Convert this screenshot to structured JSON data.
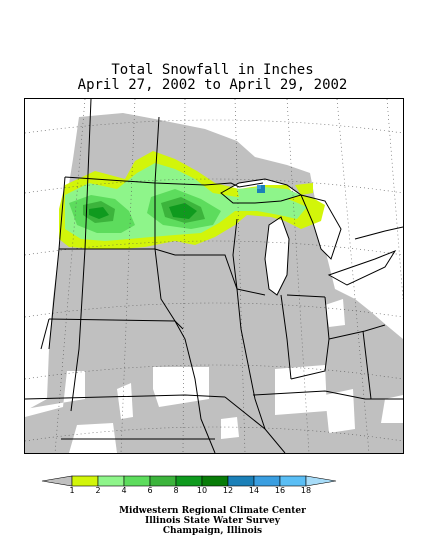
{
  "title": {
    "line1": "Total Snowfall in Inches",
    "line2": "April 27, 2002 to April 29, 2002"
  },
  "legend": {
    "labels": [
      "1",
      "2",
      "4",
      "6",
      "8",
      "10",
      "12",
      "14",
      "16",
      "18"
    ],
    "colors": [
      "#c0c0c0",
      "#d2f50a",
      "#8ef58a",
      "#5ddc5d",
      "#3cb43c",
      "#0f9a1e",
      "#087c08",
      "#1b80b8",
      "#3a9ee0",
      "#5abef5",
      "#a8dcf8"
    ]
  },
  "map": {
    "no_data_color": "#ffffff",
    "trace_color": "#c0c0c0"
  },
  "credits": {
    "line1": "Midwestern Regional Climate Center",
    "line2": "Illinois State Water Survey",
    "line3": "Champaign, Illinois"
  }
}
